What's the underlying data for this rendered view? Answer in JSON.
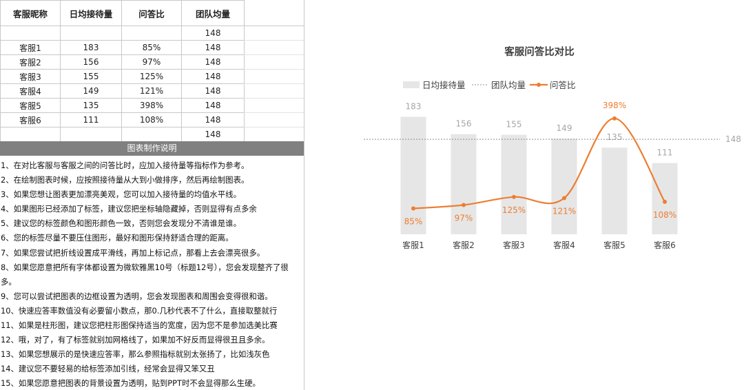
{
  "sheet": {
    "headers": [
      "客服昵称",
      "日均接待量",
      "问答比",
      "团队均量"
    ],
    "rows": [
      [
        "",
        "",
        "",
        "148"
      ],
      [
        "客服1",
        "183",
        "85%",
        "148"
      ],
      [
        "客服2",
        "156",
        "97%",
        "148"
      ],
      [
        "客服3",
        "155",
        "125%",
        "148"
      ],
      [
        "客服4",
        "149",
        "121%",
        "148"
      ],
      [
        "客服5",
        "135",
        "398%",
        "148"
      ],
      [
        "客服6",
        "111",
        "108%",
        "148"
      ],
      [
        "",
        "",
        "",
        "148"
      ]
    ]
  },
  "notes": {
    "title": "图表制作说明",
    "items": [
      "1、在对比客服与客服之间的问答比时，应加入接待量等指标作为参考。",
      "2、在绘制图表时候，应按照接待量从大到小做排序，然后再绘制图表。",
      "3、如果您想让图表更加漂亮美观，您可以加入接待量的均值水平线。",
      "4、如果图形已经添加了标签，建议您把坐标轴隐藏掉，否则显得有点多余",
      "5、建议您的标签颜色和图形颜色一致，否则您会发现分不清谁是谁。",
      "6、您的标签尽量不要压住图形，最好和图形保持舒适合理的距离。",
      "7、如果您尝试把折线设置成平滑线，再加上标记点，那看上去会漂亮很多。",
      "8、如果您愿意把所有字体都设置为微软雅黑10号（标题12号），您会发现整齐了很多。",
      "9、您可以尝试把图表的边框设置为透明，您会发现图表和周围会变得很和谐。",
      "10、快速应答率数值没有必要留小数点，那0.几秒代表不了什么，直接取整就行",
      "11、如果是柱形图，建议您把柱形图保持适当的宽度，因为您不是参加选美比赛",
      "12、哦，对了，有了标签就别加网格线了，如果加不好反而显得很丑且多余。",
      "13、如果您想展示的是快速应答率，那么参照指标就别太张扬了，比如浅灰色",
      "14、建议您不要轻易的给标签添加引线，经常会显得又笨又丑",
      "15、如果您愿意把图表的背景设置为透明，贴到PPT时不会显得那么生硬。"
    ]
  },
  "chart_data": {
    "type": "bar",
    "title": "客服问答比对比",
    "categories": [
      "客服1",
      "客服2",
      "客服3",
      "客服4",
      "客服5",
      "客服6"
    ],
    "series": [
      {
        "name": "日均接待量",
        "kind": "bar",
        "axis": "primary",
        "values": [
          183,
          156,
          155,
          149,
          135,
          111
        ],
        "labels": [
          "183",
          "156",
          "155",
          "149",
          "135",
          "111"
        ]
      },
      {
        "name": "团队均量",
        "kind": "dashed-line",
        "axis": "primary",
        "values": [
          148,
          148,
          148,
          148,
          148,
          148
        ],
        "label": "148"
      },
      {
        "name": "问答比",
        "kind": "smooth-line-markers",
        "axis": "secondary",
        "values": [
          85,
          97,
          125,
          121,
          398,
          108
        ],
        "labels": [
          "85%",
          "97%",
          "125%",
          "121%",
          "398%",
          "108%"
        ]
      }
    ],
    "ylim": [
      0,
      200
    ],
    "y2lim": [
      0,
      450
    ],
    "axes_visible": false,
    "grid": false,
    "legend": "top",
    "colors": {
      "bar": "#E6E6E6",
      "avg_line": "#8C8C8C",
      "ratio_line": "#ED7D31"
    }
  }
}
